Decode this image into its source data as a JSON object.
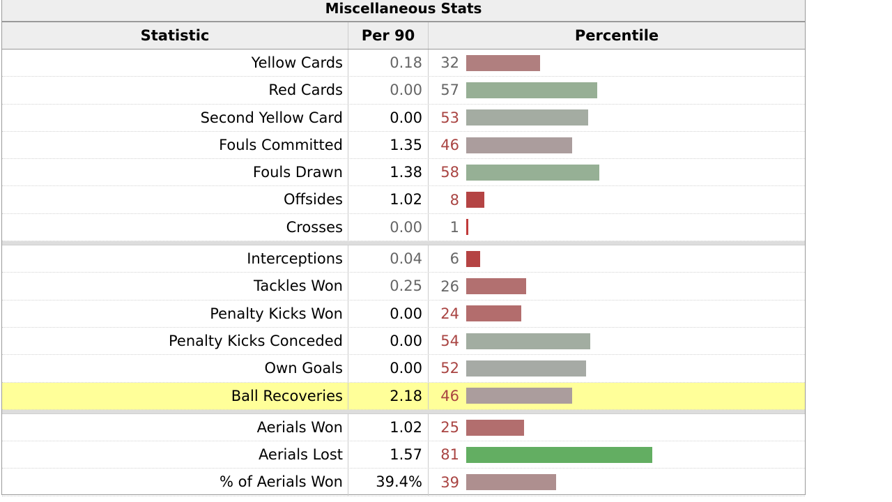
{
  "table": {
    "caption": "Miscellaneous Stats",
    "headers": {
      "statistic": "Statistic",
      "per90": "Per 90",
      "percentile": "Percentile"
    },
    "groups": [
      [
        {
          "stat": "Yellow Cards",
          "per90": "0.18",
          "pct": "32",
          "pct_value": 32,
          "bar_color": "#b07f7f",
          "per90_dim": true,
          "pct_red": false
        },
        {
          "stat": "Red Cards",
          "per90": "0.00",
          "pct": "57",
          "pct_value": 57,
          "bar_color": "#97af95",
          "per90_dim": true,
          "pct_red": false
        },
        {
          "stat": "Second Yellow Card",
          "per90": "0.00",
          "pct": "53",
          "pct_value": 53,
          "bar_color": "#a4aca2",
          "per90_dim": false,
          "pct_red": true
        },
        {
          "stat": "Fouls Committed",
          "per90": "1.35",
          "pct": "46",
          "pct_value": 46,
          "bar_color": "#ab9d9d",
          "per90_dim": false,
          "pct_red": true
        },
        {
          "stat": "Fouls Drawn",
          "per90": "1.38",
          "pct": "58",
          "pct_value": 58,
          "bar_color": "#96b095",
          "per90_dim": false,
          "pct_red": true
        },
        {
          "stat": "Offsides",
          "per90": "1.02",
          "pct": "8",
          "pct_value": 8,
          "bar_color": "#b44444",
          "per90_dim": false,
          "pct_red": true
        },
        {
          "stat": "Crosses",
          "per90": "0.00",
          "pct": "1",
          "pct_value": 1,
          "bar_color": "#c03a3a",
          "per90_dim": true,
          "pct_red": false
        }
      ],
      [
        {
          "stat": "Interceptions",
          "per90": "0.04",
          "pct": "6",
          "pct_value": 6,
          "bar_color": "#b54343",
          "per90_dim": true,
          "pct_red": false
        },
        {
          "stat": "Tackles Won",
          "per90": "0.25",
          "pct": "26",
          "pct_value": 26,
          "bar_color": "#b27070",
          "per90_dim": true,
          "pct_red": false
        },
        {
          "stat": "Penalty Kicks Won",
          "per90": "0.00",
          "pct": "24",
          "pct_value": 24,
          "bar_color": "#b36d6d",
          "per90_dim": false,
          "pct_red": true
        },
        {
          "stat": "Penalty Kicks Conceded",
          "per90": "0.00",
          "pct": "54",
          "pct_value": 54,
          "bar_color": "#a2ada1",
          "per90_dim": false,
          "pct_red": true
        },
        {
          "stat": "Own Goals",
          "per90": "0.00",
          "pct": "52",
          "pct_value": 52,
          "bar_color": "#a6aaa5",
          "per90_dim": false,
          "pct_red": true
        },
        {
          "stat": "Ball Recoveries",
          "per90": "2.18",
          "pct": "46",
          "pct_value": 46,
          "bar_color": "#ab9d9d",
          "per90_dim": false,
          "pct_red": true,
          "highlight": true
        }
      ],
      [
        {
          "stat": "Aerials Won",
          "per90": "1.02",
          "pct": "25",
          "pct_value": 25,
          "bar_color": "#b26e6e",
          "per90_dim": false,
          "pct_red": true
        },
        {
          "stat": "Aerials Lost",
          "per90": "1.57",
          "pct": "81",
          "pct_value": 81,
          "bar_color": "#63ae62",
          "per90_dim": false,
          "pct_red": true
        },
        {
          "stat": "% of Aerials Won",
          "per90": "39.4%",
          "pct": "39",
          "pct_value": 39,
          "bar_color": "#ae8f8f",
          "per90_dim": false,
          "pct_red": true
        }
      ]
    ]
  }
}
